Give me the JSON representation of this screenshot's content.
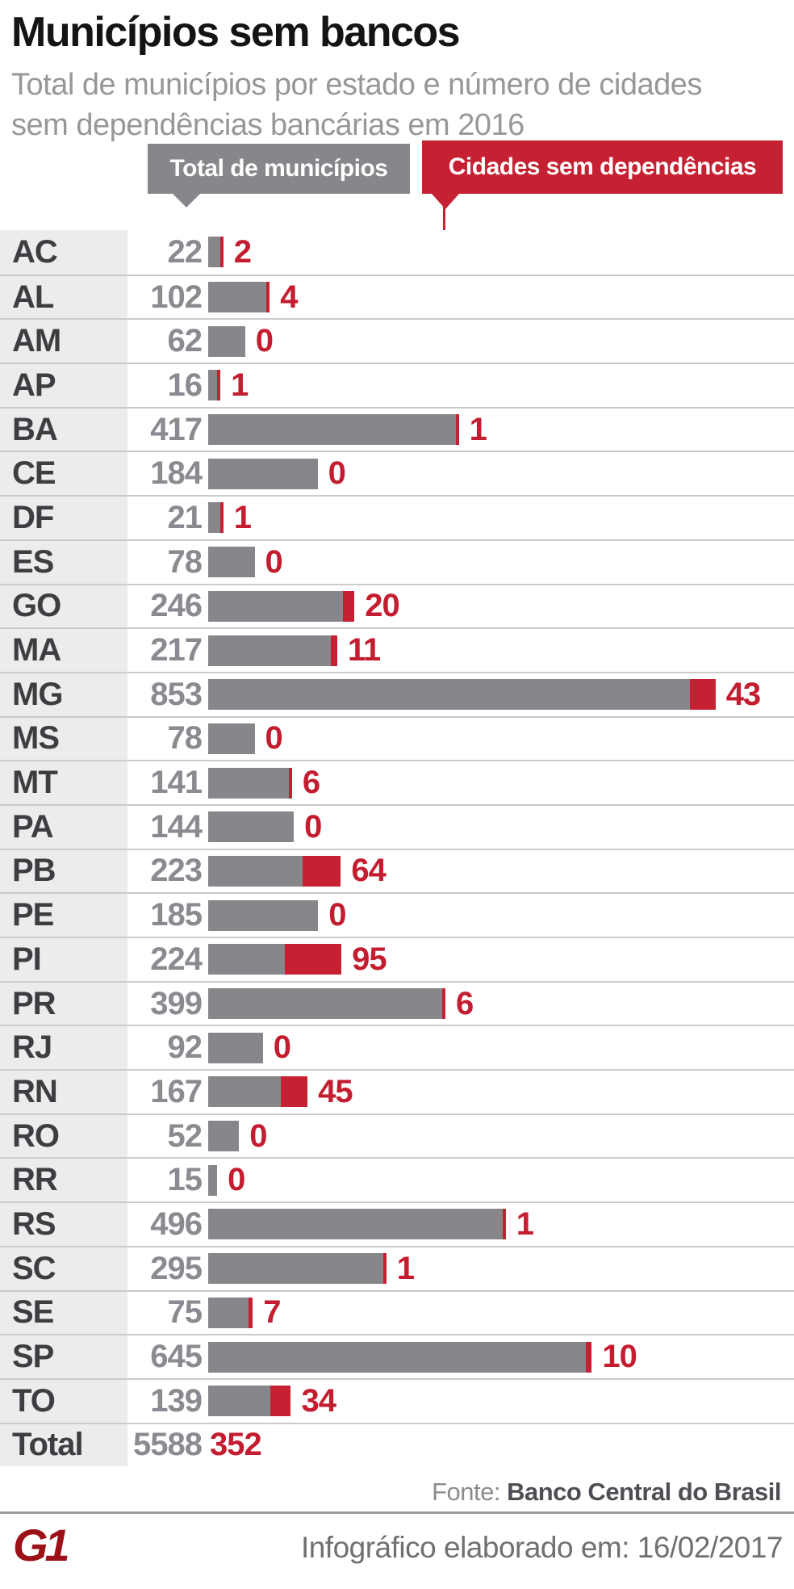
{
  "title": "Municípios sem bancos",
  "subtitle": {
    "line1": "Total de municípios por estado e número de cidades",
    "line2": "sem dependências bancárias em 2016"
  },
  "legend": {
    "total_label": "Total de municípios",
    "no_bank_label": "Cidades sem dependências"
  },
  "colors": {
    "gray_bar": "#87878b",
    "red_bar": "#c62132",
    "red_text": "#c41d30",
    "gray_text": "#8a8b90",
    "dark_text": "#3d3e42",
    "label_column_bg": "#ececec",
    "row_separator": "#cbcbcb",
    "g1_logo_red": "#9c1118"
  },
  "chart_data": {
    "type": "bar",
    "orientation": "horizontal",
    "title": "Municípios sem bancos",
    "subtitle": "Total de municípios por estado e número de cidades sem dependências bancárias em 2016",
    "categories": [
      "AC",
      "AL",
      "AM",
      "AP",
      "BA",
      "CE",
      "DF",
      "ES",
      "GO",
      "MA",
      "MG",
      "MS",
      "MT",
      "PA",
      "PB",
      "PE",
      "PI",
      "PR",
      "RJ",
      "RN",
      "RO",
      "RR",
      "RS",
      "SC",
      "SE",
      "SP",
      "TO"
    ],
    "series": [
      {
        "name": "Total de municípios",
        "color": "#87878b",
        "values": [
          22,
          102,
          62,
          16,
          417,
          184,
          21,
          78,
          246,
          217,
          853,
          78,
          141,
          144,
          223,
          185,
          224,
          399,
          92,
          167,
          52,
          15,
          496,
          295,
          75,
          645,
          139
        ]
      },
      {
        "name": "Cidades sem dependências",
        "color": "#c62132",
        "values": [
          2,
          4,
          0,
          1,
          1,
          0,
          1,
          0,
          20,
          11,
          43,
          0,
          6,
          0,
          64,
          0,
          95,
          6,
          0,
          45,
          0,
          0,
          1,
          1,
          7,
          10,
          34
        ]
      }
    ],
    "totals": {
      "label": "Total",
      "total_municipios": 5588,
      "cidades_sem_dependencias": 352
    },
    "x_max": 853,
    "grid": false,
    "legend_position": "top"
  },
  "footer": {
    "source_prefix": "Fonte:",
    "source_name": "Banco Central do Brasil",
    "credit": "Infográfico elaborado em: 16/02/2017",
    "logo_text": "G1"
  }
}
